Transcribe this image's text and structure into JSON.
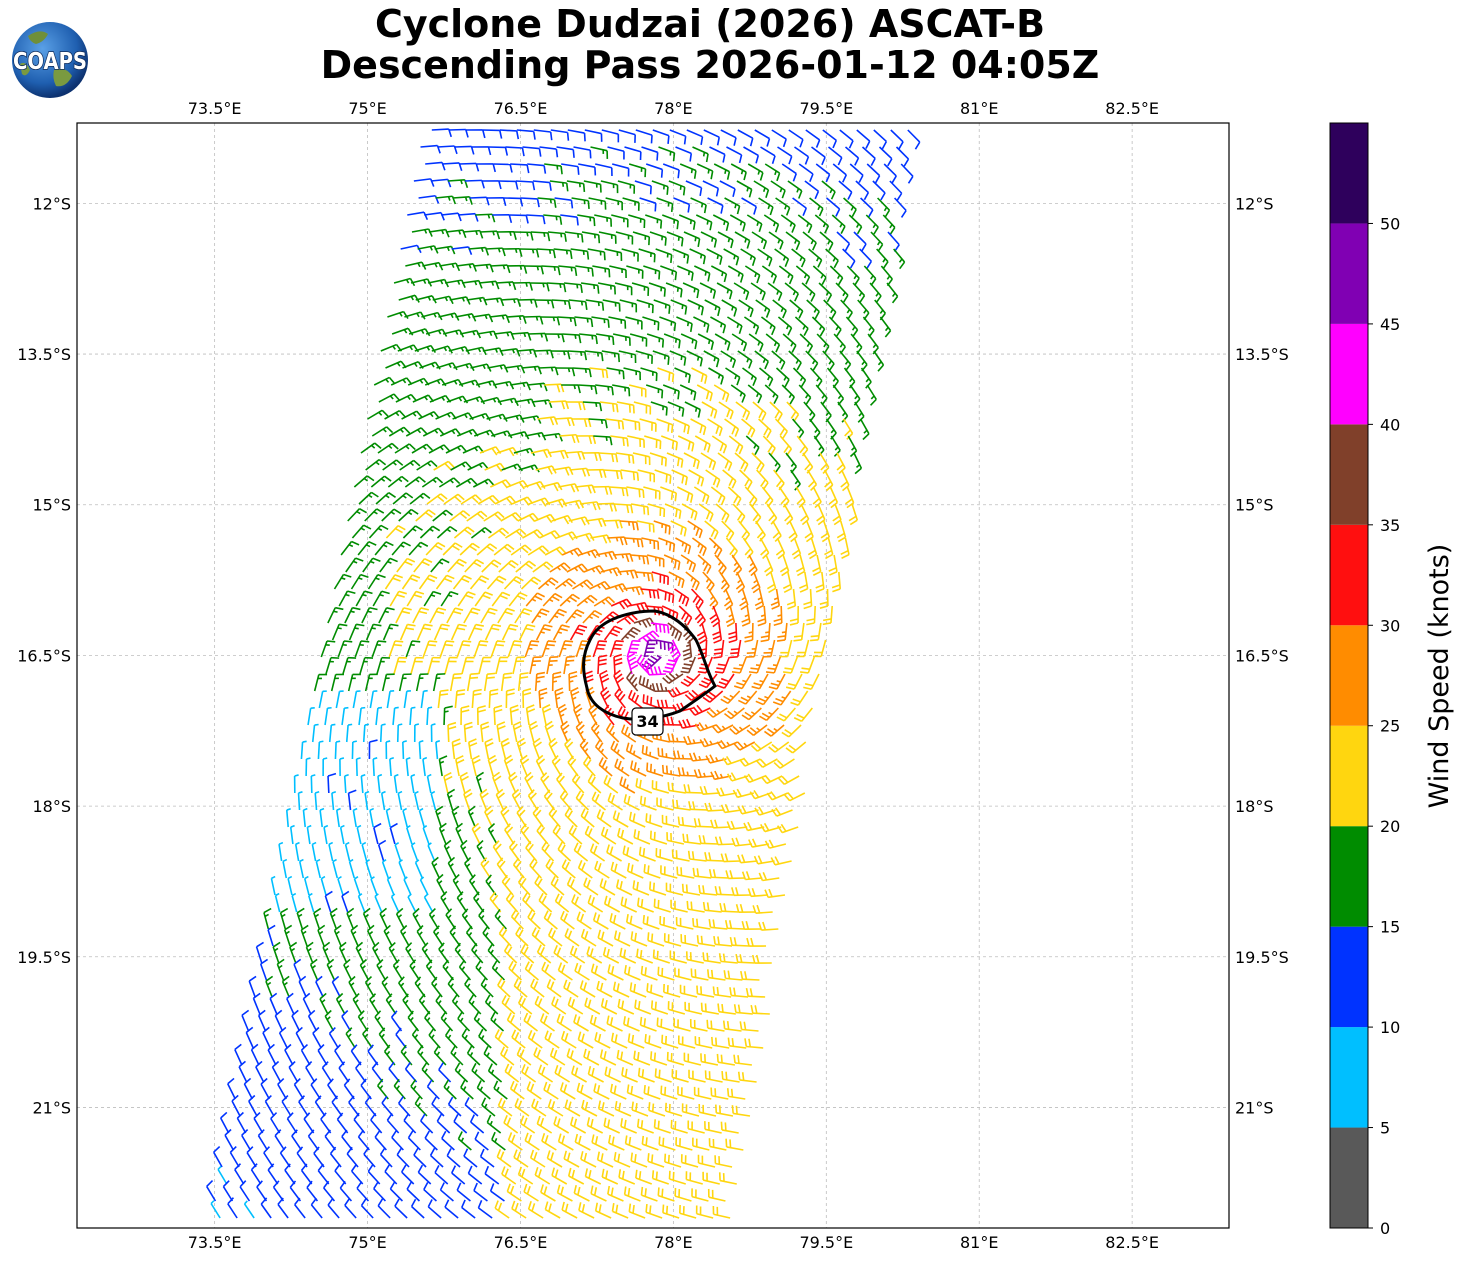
{
  "title": {
    "line1": "Cyclone Dudzai (2026) ASCAT-B",
    "line2": "Descending Pass 2026-01-12 04:05Z"
  },
  "logo": {
    "text": "COAPS",
    "icon": "globe-logo-icon"
  },
  "map": {
    "lon_range": [
      72.15,
      83.45
    ],
    "lat_range": [
      -22.2,
      -11.2
    ],
    "lon_ticks": [
      {
        "value": 73.5,
        "label": "73.5°E"
      },
      {
        "value": 75,
        "label": "75°E"
      },
      {
        "value": 76.5,
        "label": "76.5°E"
      },
      {
        "value": 78,
        "label": "78°E"
      },
      {
        "value": 79.5,
        "label": "79.5°E"
      },
      {
        "value": 81,
        "label": "81°E"
      },
      {
        "value": 82.5,
        "label": "82.5°E"
      }
    ],
    "lat_ticks": [
      {
        "value": -12,
        "label": "12°S"
      },
      {
        "value": -13.5,
        "label": "13.5°S"
      },
      {
        "value": -15,
        "label": "15°S"
      },
      {
        "value": -16.5,
        "label": "16.5°S"
      },
      {
        "value": -18,
        "label": "18°S"
      },
      {
        "value": -19.5,
        "label": "19.5°S"
      },
      {
        "value": -21,
        "label": "21°S"
      }
    ],
    "grid": true,
    "storm_center": {
      "lon": 77.85,
      "lat": -16.5
    },
    "contour": {
      "label": "34",
      "level_kt": 34
    }
  },
  "colorbar": {
    "label": "Wind Speed (knots)",
    "bins": [
      {
        "min": 0,
        "max": 5,
        "color": "#595959"
      },
      {
        "min": 5,
        "max": 10,
        "color": "#00bfff"
      },
      {
        "min": 10,
        "max": 15,
        "color": "#0033ff"
      },
      {
        "min": 15,
        "max": 20,
        "color": "#008c00"
      },
      {
        "min": 20,
        "max": 25,
        "color": "#ffd60f"
      },
      {
        "min": 25,
        "max": 30,
        "color": "#ff8c00"
      },
      {
        "min": 30,
        "max": 35,
        "color": "#ff0f0f"
      },
      {
        "min": 35,
        "max": 40,
        "color": "#80402a"
      },
      {
        "min": 40,
        "max": 45,
        "color": "#ff00ff"
      },
      {
        "min": 45,
        "max": 50,
        "color": "#8000b3"
      },
      {
        "min": 50,
        "max": 55,
        "color": "#2e005c"
      }
    ],
    "tick_labels": [
      "0",
      "5",
      "10",
      "15",
      "20",
      "25",
      "30",
      "35",
      "40",
      "45",
      "50"
    ]
  }
}
